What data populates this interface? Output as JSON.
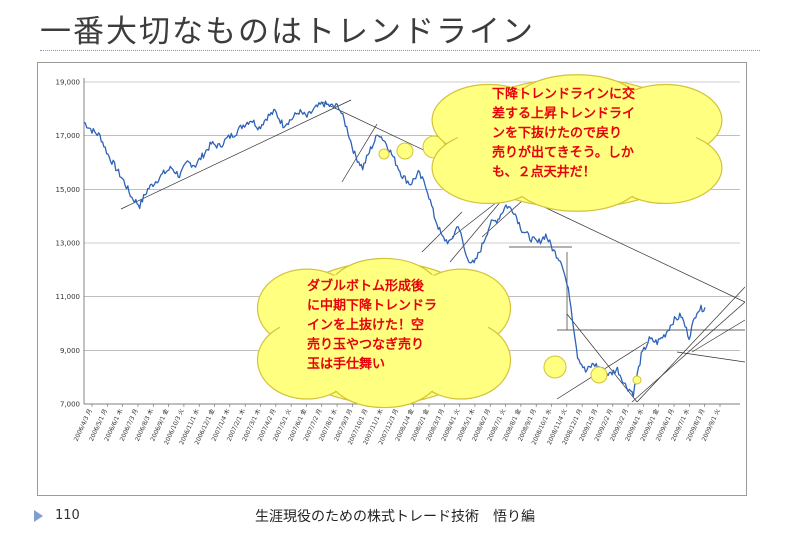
{
  "slide": {
    "title": "一番大切なものはトレンドライン",
    "page_number": "110",
    "footer": "生涯現役のための株式トレード技術　悟り編"
  },
  "colors": {
    "price_line": "#2e62b8",
    "trendline": "#333333",
    "bubble_fill": "#ffff80",
    "bubble_stroke": "#d4c23a",
    "annotation_text": "#e8000b",
    "gridline": "#999999"
  },
  "annotations": [
    {
      "id": "upper",
      "lines": [
        "下降トレンドラインに交",
        "差する上昇トレンドライ",
        "ンを下抜けたので戻り",
        "売りが出てきそう。しか",
        "も、２点天井だ！"
      ]
    },
    {
      "id": "lower",
      "lines": [
        "ダブルボトム形成後",
        "に中期下降トレンドラ",
        "インを上抜けた！空",
        "売り玉やつなぎ売り",
        "玉は手仕舞い"
      ]
    }
  ],
  "chart_data": {
    "type": "line",
    "title": "",
    "xlabel": "",
    "ylabel": "",
    "ylim": [
      7000,
      19000
    ],
    "yticks": [
      "7,000",
      "9,000",
      "11,000",
      "13,000",
      "15,000",
      "17,000",
      "19,000"
    ],
    "x_tick_labels": [
      "2006/4/3 月",
      "2006/5/1 月",
      "2006/6/1 木",
      "2006/7/3 月",
      "2006/8/3 木",
      "2006/9/1 金",
      "2006/10/3 火",
      "2006/11/1 水",
      "2006/12/1 金",
      "2007/1/4 木",
      "2007/2/1 木",
      "2007/3/1 木",
      "2007/4/2 月",
      "2007/5/1 火",
      "2007/6/1 金",
      "2007/7/2 月",
      "2007/8/1 水",
      "2007/9/3 月",
      "2007/10/1 月",
      "2007/11/1 木",
      "2007/12/3 月",
      "2008/1/4 金",
      "2008/2/1 金",
      "2008/3/3 月",
      "2008/4/1 火",
      "2008/5/1 木",
      "2008/6/2 月",
      "2008/7/1 火",
      "2008/8/1 金",
      "2008/9/1 月",
      "2008/10/1 水",
      "2008/11/4 火",
      "2008/12/1 月",
      "2009/1/5 月",
      "2009/2/2 月",
      "2009/3/2 月",
      "2009/4/1 水",
      "2009/5/1 金",
      "2009/6/1 月",
      "2009/7/1 水",
      "2009/8/3 月",
      "2009/9/1 火"
    ],
    "grid": "horizontal",
    "series": [
      {
        "values": [
          17500,
          17200,
          17000,
          16300,
          15800,
          15300,
          14700,
          14400,
          15000,
          15300,
          15600,
          15800,
          15500,
          16000,
          15900,
          16300,
          16700,
          16600,
          16900,
          17100,
          17400,
          17600,
          17300,
          17700,
          17900,
          17400,
          17600,
          17900,
          17700,
          18000,
          18200,
          18100,
          18100,
          17300,
          16300,
          15800,
          16500,
          17100,
          16700,
          16100,
          15500,
          15200,
          15600,
          15100,
          14000,
          13200,
          13000,
          13700,
          12500,
          12200,
          12900,
          13700,
          13900,
          14400,
          14200,
          13500,
          13200,
          13000,
          13300,
          12700,
          12300,
          11000,
          8800,
          8200,
          8500,
          8300,
          8100,
          8300,
          7700,
          7400,
          8800,
          9400,
          9300,
          9600,
          10100,
          10300,
          9500,
          10500,
          10600
        ]
      }
    ]
  }
}
